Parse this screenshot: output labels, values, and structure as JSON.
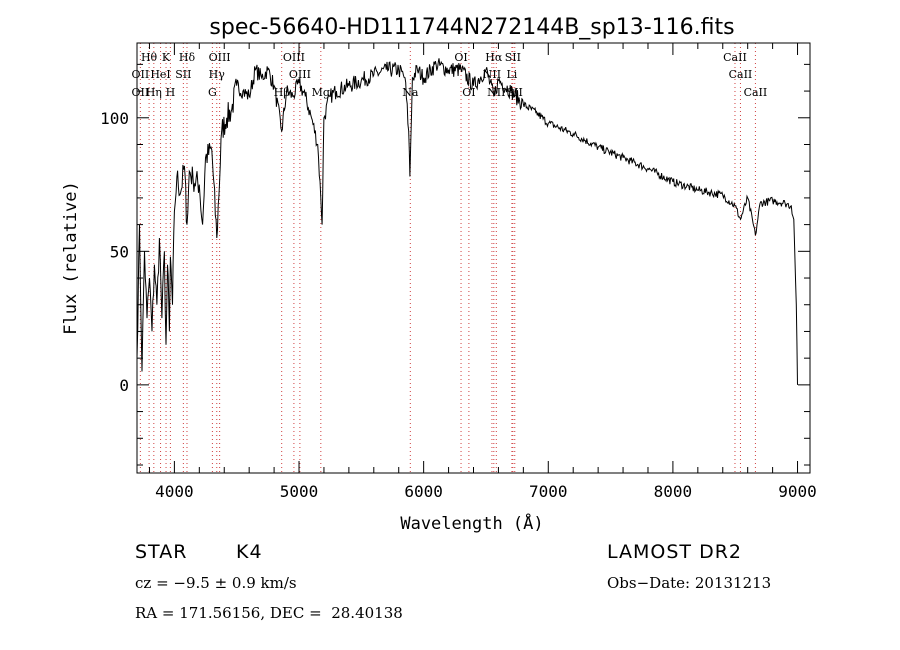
{
  "chart_data": {
    "type": "line",
    "title": "spec-56640-HD111744N272144B_sp13-116.fits",
    "xlabel": "Wavelength (Å)",
    "ylabel": "Flux (relative)",
    "xlim": [
      3700,
      9100
    ],
    "ylim": [
      -33,
      128
    ],
    "x_ticks": [
      4000,
      5000,
      6000,
      7000,
      8000,
      9000
    ],
    "y_ticks": [
      0,
      50,
      100
    ],
    "x_minor_step": 200,
    "y_minor_step": 10,
    "grid": false,
    "line_color": "#000000",
    "marker_color": "#d04040",
    "x": [
      3700,
      3720,
      3740,
      3760,
      3780,
      3800,
      3820,
      3840,
      3860,
      3880,
      3900,
      3920,
      3933,
      3945,
      3960,
      3968,
      3985,
      4000,
      4020,
      4050,
      4080,
      4101,
      4120,
      4150,
      4200,
      4226,
      4250,
      4300,
      4340,
      4380,
      4420,
      4460,
      4500,
      4550,
      4600,
      4650,
      4700,
      4750,
      4800,
      4861,
      4900,
      4950,
      5000,
      5050,
      5100,
      5150,
      5175,
      5185,
      5200,
      5250,
      5300,
      5400,
      5500,
      5600,
      5700,
      5800,
      5850,
      5880,
      5890,
      5896,
      5910,
      5950,
      6000,
      6100,
      6200,
      6300,
      6400,
      6500,
      6563,
      6600,
      6700,
      6800,
      6900,
      7000,
      7200,
      7400,
      7600,
      7800,
      8000,
      8200,
      8400,
      8498,
      8542,
      8600,
      8662,
      8700,
      8800,
      8900,
      8950,
      8970,
      8990,
      9000
    ],
    "y": [
      10,
      60,
      5,
      50,
      25,
      40,
      20,
      45,
      30,
      55,
      25,
      50,
      15,
      45,
      20,
      48,
      30,
      65,
      78,
      72,
      82,
      60,
      80,
      77,
      75,
      60,
      85,
      88,
      55,
      95,
      100,
      103,
      112,
      110,
      108,
      118,
      115,
      118,
      112,
      95,
      110,
      108,
      113,
      108,
      100,
      90,
      70,
      60,
      100,
      108,
      110,
      112,
      114,
      116,
      118,
      118,
      115,
      95,
      78,
      90,
      115,
      118,
      115,
      120,
      118,
      118,
      112,
      118,
      108,
      114,
      110,
      105,
      102,
      98,
      94,
      89,
      85,
      81,
      76,
      73,
      71,
      67,
      62,
      70,
      56,
      68,
      69,
      68,
      67,
      62,
      30,
      0
    ],
    "line_markers": [
      {
        "label": "Hθ",
        "x": 3797,
        "row": 0
      },
      {
        "label": "K",
        "x": 3933,
        "row": 0
      },
      {
        "label": "Hδ",
        "x": 4101,
        "row": 0
      },
      {
        "label": "OIII",
        "x": 4363,
        "row": 0
      },
      {
        "label": "OIII",
        "x": 4959,
        "row": 0
      },
      {
        "label": "OI",
        "x": 6300,
        "row": 0
      },
      {
        "label": "Hα",
        "x": 6563,
        "row": 0
      },
      {
        "label": "SII",
        "x": 6716,
        "row": 0
      },
      {
        "label": "CaII",
        "x": 8498,
        "row": 0
      },
      {
        "label": "OII",
        "x": 3727,
        "row": 1
      },
      {
        "label": "HeI",
        "x": 3889,
        "row": 1
      },
      {
        "label": "SII",
        "x": 4072,
        "row": 1
      },
      {
        "label": "Hγ",
        "x": 4340,
        "row": 1
      },
      {
        "label": "OIII",
        "x": 5007,
        "row": 1
      },
      {
        "label": "NII",
        "x": 6548,
        "row": 1
      },
      {
        "label": "Li",
        "x": 6708,
        "row": 1
      },
      {
        "label": "CaII",
        "x": 8542,
        "row": 1
      },
      {
        "label": "OII",
        "x": 3727,
        "row": 2
      },
      {
        "label": "Hη",
        "x": 3835,
        "row": 2
      },
      {
        "label": "H",
        "x": 3968,
        "row": 2
      },
      {
        "label": "G",
        "x": 4305,
        "row": 2
      },
      {
        "label": "Hβ",
        "x": 4861,
        "row": 2
      },
      {
        "label": "Mg",
        "x": 5175,
        "row": 2
      },
      {
        "label": "Na",
        "x": 5893,
        "row": 2
      },
      {
        "label": "OI",
        "x": 6363,
        "row": 2
      },
      {
        "label": "NII",
        "x": 6583,
        "row": 2
      },
      {
        "label": "SII",
        "x": 6731,
        "row": 2
      },
      {
        "label": "CaII",
        "x": 8662,
        "row": 2
      }
    ]
  },
  "info": {
    "object_class": "STAR",
    "subclass": "K4",
    "survey": "LAMOST DR2",
    "cz": "cz = −9.5 ± 0.9 km/s",
    "obs_date": "Obs−Date: 20131213",
    "coords": "RA = 171.56156, DEC =  28.40138"
  }
}
